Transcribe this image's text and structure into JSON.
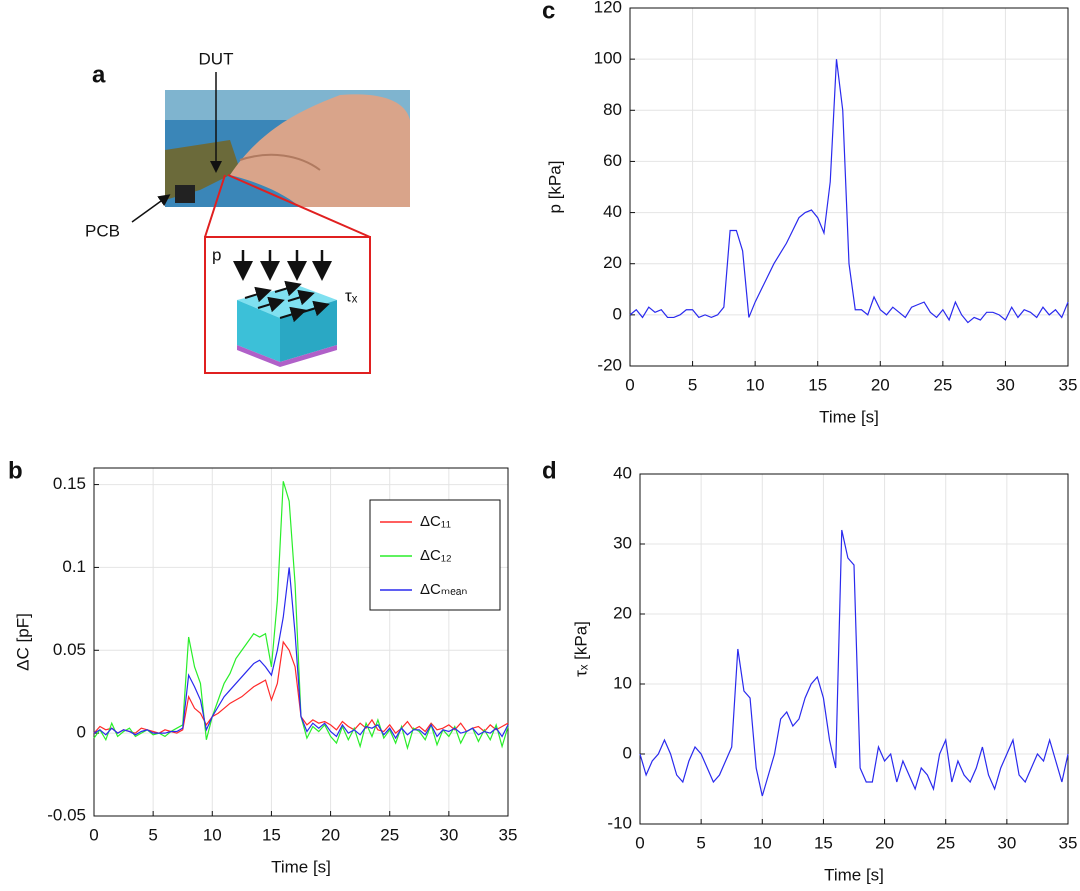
{
  "panel_labels": [
    "a",
    "b",
    "c",
    "d"
  ],
  "panel_a": {
    "dut_label": "DUT",
    "pcb_label": "PCB",
    "pressure_label": "p",
    "shear_label": "τₓ"
  },
  "chart_data": [
    {
      "type": "line",
      "ylabel": "ΔC [pF]",
      "xlabel": "Time [s]",
      "grid": true,
      "legend": "upper right",
      "x": [
        0,
        0.5,
        1,
        1.5,
        2,
        2.5,
        3,
        3.5,
        4,
        4.5,
        5,
        5.5,
        6,
        6.5,
        7,
        7.5,
        8,
        8.5,
        9,
        9.5,
        10,
        10.5,
        11,
        11.5,
        12,
        12.5,
        13,
        13.5,
        14,
        14.5,
        15,
        15.5,
        16,
        16.5,
        17,
        17.5,
        18,
        18.5,
        19,
        19.5,
        20,
        20.5,
        21,
        21.5,
        22,
        22.5,
        23,
        23.5,
        24,
        24.5,
        25,
        25.5,
        26,
        26.5,
        27,
        27.5,
        28,
        28.5,
        29,
        29.5,
        30,
        30.5,
        31,
        31.5,
        32,
        32.5,
        33,
        33.5,
        34,
        34.5,
        35
      ],
      "xlim": [
        0,
        35
      ],
      "xticks": [
        0,
        5,
        10,
        15,
        20,
        25,
        30,
        35
      ],
      "ylim": [
        -0.05,
        0.16
      ],
      "yticks": [
        -0.05,
        0,
        0.05,
        0.1,
        0.15
      ],
      "series": [
        {
          "name": "ΔC₁₁",
          "color": "#ff2a2a",
          "values": [
            0,
            0.004,
            0.002,
            0.003,
            0,
            0.002,
            0.001,
            0,
            0.003,
            0.002,
            0.001,
            0,
            0.002,
            0.001,
            0,
            0.002,
            0.022,
            0.015,
            0.012,
            0.005,
            0.01,
            0.012,
            0.015,
            0.018,
            0.02,
            0.022,
            0.025,
            0.028,
            0.03,
            0.032,
            0.02,
            0.03,
            0.055,
            0.05,
            0.04,
            0.01,
            0.005,
            0.008,
            0.006,
            0.007,
            0.005,
            0.002,
            0.007,
            0.004,
            0.002,
            0.006,
            0.003,
            0.008,
            0.002,
            0.001,
            0.005,
            0,
            0.003,
            0.007,
            0.002,
            0.004,
            0.001,
            0.006,
            0.002,
            0.003,
            0.005,
            0.002,
            0.006,
            0.001,
            0.003,
            0.004,
            0.001,
            0.005,
            0.002,
            0.004,
            0.006
          ]
        },
        {
          "name": "ΔC₁₂",
          "color": "#2aee2a",
          "values": [
            -0.003,
            0.002,
            -0.004,
            0.006,
            -0.002,
            0.001,
            0.003,
            -0.002,
            0,
            0.002,
            -0.001,
            0,
            -0.002,
            0.001,
            0.003,
            0.005,
            0.058,
            0.04,
            0.03,
            -0.004,
            0.01,
            0.02,
            0.03,
            0.036,
            0.045,
            0.05,
            0.055,
            0.06,
            0.058,
            0.06,
            0.04,
            0.08,
            0.152,
            0.14,
            0.09,
            0.01,
            -0.003,
            0.004,
            0.001,
            0.005,
            -0.002,
            -0.006,
            0.004,
            -0.004,
            0.003,
            -0.008,
            0.006,
            -0.002,
            0.008,
            -0.003,
            0.002,
            -0.006,
            0.004,
            -0.009,
            0.003,
            0.001,
            -0.004,
            0.005,
            -0.007,
            0.002,
            -0.002,
            0.004,
            -0.006,
            0.001,
            0.003,
            -0.005,
            0.002,
            -0.004,
            0.005,
            -0.008,
            0.004
          ]
        },
        {
          "name": "ΔCₘₑₐₙ",
          "color": "#2a2aee",
          "values": [
            0,
            0.002,
            -0.001,
            0.003,
            0,
            0.002,
            0.001,
            -0.001,
            0.001,
            0.002,
            0,
            0,
            0,
            0.001,
            0.001,
            0.003,
            0.035,
            0.028,
            0.02,
            0.002,
            0.01,
            0.016,
            0.022,
            0.026,
            0.03,
            0.034,
            0.038,
            0.042,
            0.044,
            0.04,
            0.035,
            0.05,
            0.07,
            0.1,
            0.06,
            0.01,
            0.001,
            0.006,
            0.003,
            0.006,
            0.001,
            -0.002,
            0.005,
            0,
            0.002,
            -0.001,
            0.004,
            0.003,
            0.005,
            -0.001,
            0.003,
            -0.003,
            0.003,
            -0.001,
            0.002,
            0.002,
            -0.001,
            0.005,
            -0.002,
            0.002,
            0.001,
            0.003,
            0,
            0.001,
            0.003,
            -0.001,
            0.001,
            0,
            0.003,
            -0.002,
            0.005
          ]
        }
      ]
    },
    {
      "type": "line",
      "ylabel": "p [kPa]",
      "xlabel": "Time [s]",
      "grid": true,
      "x": [
        0,
        0.5,
        1,
        1.5,
        2,
        2.5,
        3,
        3.5,
        4,
        4.5,
        5,
        5.5,
        6,
        6.5,
        7,
        7.5,
        8,
        8.5,
        9,
        9.5,
        10,
        10.5,
        11,
        11.5,
        12,
        12.5,
        13,
        13.5,
        14,
        14.5,
        15,
        15.5,
        16,
        16.5,
        17,
        17.5,
        18,
        18.5,
        19,
        19.5,
        20,
        20.5,
        21,
        21.5,
        22,
        22.5,
        23,
        23.5,
        24,
        24.5,
        25,
        25.5,
        26,
        26.5,
        27,
        27.5,
        28,
        28.5,
        29,
        29.5,
        30,
        30.5,
        31,
        31.5,
        32,
        32.5,
        33,
        33.5,
        34,
        34.5,
        35
      ],
      "xlim": [
        0,
        35
      ],
      "xticks": [
        0,
        5,
        10,
        15,
        20,
        25,
        30,
        35
      ],
      "ylim": [
        -20,
        120
      ],
      "yticks": [
        -20,
        0,
        20,
        40,
        60,
        80,
        100,
        120
      ],
      "series": [
        {
          "color": "#2a2aee",
          "values": [
            0,
            2,
            -1,
            3,
            1,
            2,
            -1,
            -1,
            0,
            2,
            2,
            -1,
            0,
            -1,
            0,
            3,
            33,
            33,
            25,
            -1,
            5,
            10,
            15,
            20,
            24,
            28,
            33,
            38,
            40,
            41,
            38,
            32,
            52,
            100,
            80,
            20,
            2,
            2,
            0,
            7,
            2,
            0,
            3,
            1,
            -1,
            3,
            4,
            5,
            1,
            -1,
            2,
            -2,
            5,
            0,
            -3,
            -1,
            -2,
            1,
            1,
            0,
            -2,
            3,
            -1,
            2,
            1,
            -1,
            3,
            0,
            2,
            -1,
            5
          ]
        }
      ]
    },
    {
      "type": "line",
      "ylabel": "τₓ [kPa]",
      "xlabel": "Time [s]",
      "grid": true,
      "x": [
        0,
        0.5,
        1,
        1.5,
        2,
        2.5,
        3,
        3.5,
        4,
        4.5,
        5,
        5.5,
        6,
        6.5,
        7,
        7.5,
        8,
        8.5,
        9,
        9.5,
        10,
        10.5,
        11,
        11.5,
        12,
        12.5,
        13,
        13.5,
        14,
        14.5,
        15,
        15.5,
        16,
        16.5,
        17,
        17.5,
        18,
        18.5,
        19,
        19.5,
        20,
        20.5,
        21,
        21.5,
        22,
        22.5,
        23,
        23.5,
        24,
        24.5,
        25,
        25.5,
        26,
        26.5,
        27,
        27.5,
        28,
        28.5,
        29,
        29.5,
        30,
        30.5,
        31,
        31.5,
        32,
        32.5,
        33,
        33.5,
        34,
        34.5,
        35
      ],
      "xlim": [
        0,
        35
      ],
      "xticks": [
        0,
        5,
        10,
        15,
        20,
        25,
        30,
        35
      ],
      "ylim": [
        -10,
        40
      ],
      "yticks": [
        -10,
        0,
        10,
        20,
        30,
        40
      ],
      "series": [
        {
          "color": "#2a2aee",
          "values": [
            0,
            -3,
            -1,
            0,
            2,
            0,
            -3,
            -4,
            -1,
            1,
            0,
            -2,
            -4,
            -3,
            -1,
            1,
            15,
            9,
            8,
            -2,
            -6,
            -3,
            0,
            5,
            6,
            4,
            5,
            8,
            10,
            11,
            8,
            2,
            -2,
            32,
            28,
            27,
            -2,
            -4,
            -4,
            1,
            -1,
            0,
            -4,
            -1,
            -3,
            -5,
            -2,
            -3,
            -5,
            0,
            2,
            -4,
            -1,
            -3,
            -4,
            -2,
            1,
            -3,
            -5,
            -2,
            0,
            2,
            -3,
            -4,
            -2,
            0,
            -1,
            2,
            -1,
            -4,
            0
          ]
        }
      ]
    }
  ]
}
